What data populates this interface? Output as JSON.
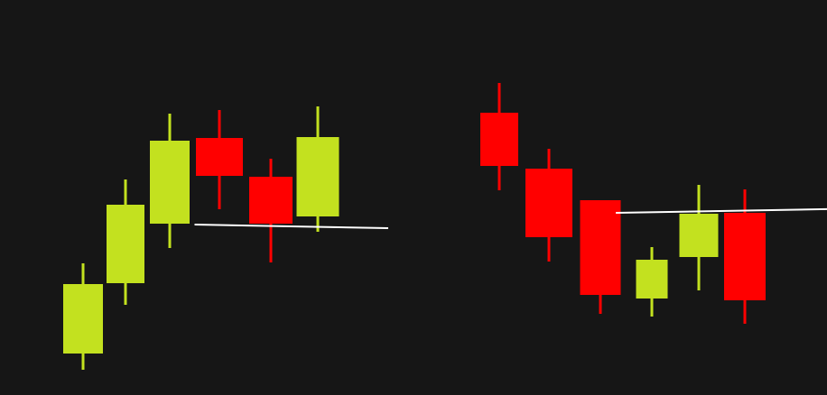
{
  "colors": {
    "background": "#161616",
    "bullish": "#c3e11f",
    "bearish": "#ff0000",
    "trendline": "#ffffff"
  },
  "chart_data": [
    {
      "type": "candlestick",
      "title": "",
      "xlabel": "",
      "ylabel": "",
      "grid": false,
      "ylim": [
        0,
        438
      ],
      "trendline": {
        "from": [
          2.5,
          189
        ],
        "to": [
          6.5,
          185
        ]
      },
      "candles": [
        {
          "index": 0,
          "open": 46,
          "close": 123,
          "high": 146,
          "low": 28,
          "direction": "bullish"
        },
        {
          "index": 1,
          "open": 124,
          "close": 211,
          "high": 239,
          "low": 100,
          "direction": "bullish"
        },
        {
          "index": 2,
          "open": 190,
          "close": 282,
          "high": 312,
          "low": 163,
          "direction": "bullish"
        },
        {
          "index": 3,
          "open": 285,
          "close": 243,
          "high": 316,
          "low": 206,
          "direction": "bearish"
        },
        {
          "index": 4,
          "open": 242,
          "close": 190,
          "high": 262,
          "low": 147,
          "direction": "bearish"
        },
        {
          "index": 5,
          "open": 198,
          "close": 286,
          "high": 320,
          "low": 181,
          "direction": "bullish"
        }
      ]
    },
    {
      "type": "candlestick",
      "title": "",
      "xlabel": "",
      "ylabel": "",
      "grid": false,
      "ylim": [
        0,
        438
      ],
      "trendline": {
        "from": [
          2.3,
          202
        ],
        "to": [
          7.8,
          207
        ]
      },
      "candles": [
        {
          "index": 0,
          "open": 313,
          "close": 254,
          "high": 346,
          "low": 227,
          "direction": "bearish"
        },
        {
          "index": 1,
          "open": 251,
          "close": 175,
          "high": 273,
          "low": 148,
          "direction": "bearish"
        },
        {
          "index": 2,
          "open": 216,
          "close": 111,
          "high": 216,
          "low": 90,
          "direction": "bearish"
        },
        {
          "index": 3,
          "open": 107,
          "close": 150,
          "high": 164,
          "low": 87,
          "direction": "bullish"
        },
        {
          "index": 4,
          "open": 153,
          "close": 201,
          "high": 233,
          "low": 116,
          "direction": "bullish"
        },
        {
          "index": 5,
          "open": 202,
          "close": 105,
          "high": 228,
          "low": 79,
          "direction": "bearish"
        }
      ]
    }
  ]
}
